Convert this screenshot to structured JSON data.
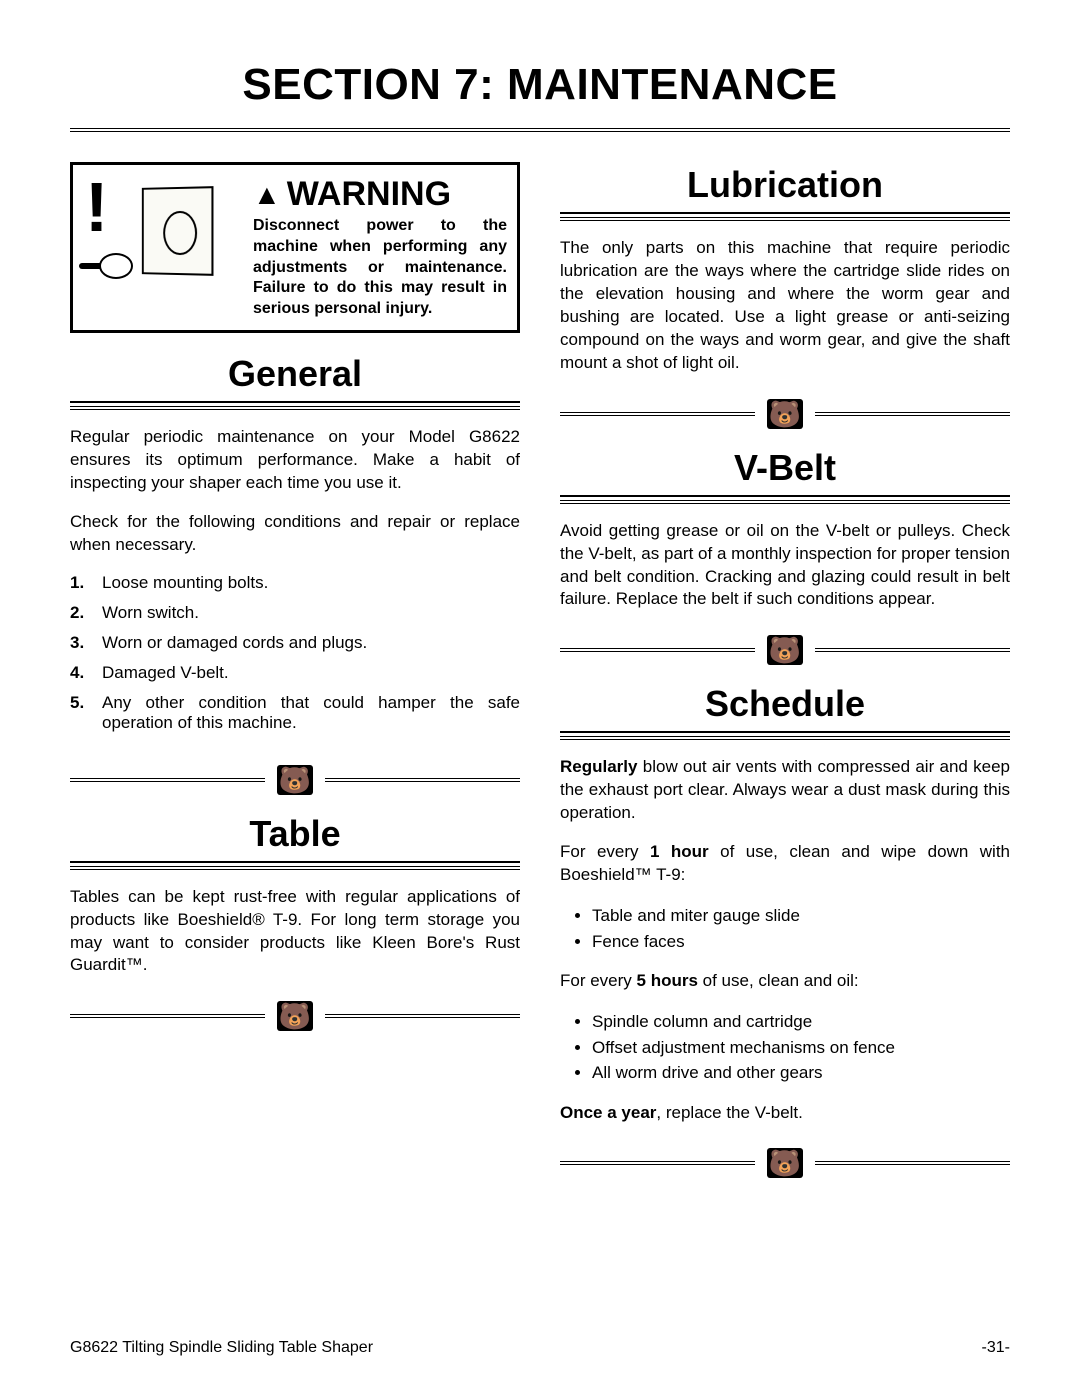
{
  "page_title": "SECTION 7: MAINTENANCE",
  "warning": {
    "label": "WARNING",
    "body": "Disconnect power to the machine when performing any adjustments or maintenance. Failure to do this may result in serious personal injury."
  },
  "left": {
    "general": {
      "heading": "General",
      "p1": "Regular periodic maintenance on your Model G8622 ensures its optimum performance. Make a habit of inspecting your shaper each time you use it.",
      "p2": "Check for the following conditions and repair or replace when necessary.",
      "list": [
        "Loose mounting bolts.",
        "Worn switch.",
        "Worn or damaged cords and plugs.",
        "Damaged V-belt.",
        "Any other condition that could hamper the safe operation of this machine."
      ]
    },
    "table": {
      "heading": "Table",
      "p1": "Tables can be kept rust-free with regular applications of products like Boeshield® T-9. For long term storage you may want to consider products like Kleen Bore's Rust Guardit™."
    }
  },
  "right": {
    "lubrication": {
      "heading": "Lubrication",
      "p1": "The only parts on this machine that require periodic lubrication are the ways where the cartridge slide rides on the elevation housing and where the worm gear and bushing are located. Use a light grease or anti-seizing compound on the ways and worm gear, and give the shaft mount a shot of light oil."
    },
    "vbelt": {
      "heading": "V-Belt",
      "p1": "Avoid getting grease or oil on the V-belt or pulleys. Check the V-belt, as part of a monthly inspection for proper tension and belt condition. Cracking and glazing could result in belt failure. Replace the belt if such conditions appear."
    },
    "schedule": {
      "heading": "Schedule",
      "p1_pre": "Regularly",
      "p1_rest": " blow out air vents with compressed air and keep the exhaust port clear. Always wear a dust mask during this operation.",
      "p2_pre": "For every ",
      "p2_bold": "1 hour",
      "p2_rest": " of use, clean and wipe down with Boeshield™ T-9:",
      "list1": [
        "Table and miter gauge slide",
        "Fence faces"
      ],
      "p3_pre": "For every ",
      "p3_bold": "5 hours",
      "p3_rest": " of use, clean and oil:",
      "list2": [
        "Spindle column and cartridge",
        "Offset adjustment mechanisms on fence",
        "All worm drive and other gears"
      ],
      "p4_pre": "Once a year",
      "p4_rest": ", replace the V-belt."
    }
  },
  "footer": {
    "left": "G8622 Tilting Spindle Sliding Table Shaper",
    "right": "-31-"
  },
  "colors": {
    "text": "#000000",
    "background": "#ffffff"
  }
}
